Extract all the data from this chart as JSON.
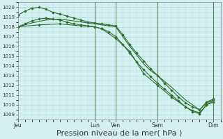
{
  "background_color": "#d4f0f0",
  "grid_color": "#b0d8d8",
  "line_color": "#2d6e2d",
  "ylim": [
    1008.5,
    1020.5
  ],
  "yticks": [
    1009,
    1010,
    1011,
    1012,
    1013,
    1014,
    1015,
    1016,
    1017,
    1018,
    1019,
    1020
  ],
  "xlabel": "Pression niveau de la mer( hPa )",
  "xlabel_fontsize": 8,
  "day_labels": [
    "Jeu",
    "Lun",
    "Ven",
    "Sam",
    "Dim"
  ],
  "day_positions": [
    0,
    11,
    14,
    20,
    28
  ],
  "xlim": [
    0,
    29
  ],
  "vlines": [
    11,
    14,
    20,
    28
  ],
  "series": [
    {
      "x": [
        0,
        1,
        2,
        3,
        4,
        5,
        6,
        7,
        8,
        9,
        10,
        11,
        12,
        13,
        14,
        15,
        16,
        17,
        18,
        19,
        20,
        21,
        22,
        23,
        24,
        25,
        26,
        27,
        28
      ],
      "y": [
        1019.2,
        1019.6,
        1019.9,
        1020.0,
        1019.8,
        1019.5,
        1019.3,
        1019.1,
        1018.9,
        1018.7,
        1018.5,
        1018.4,
        1018.3,
        1018.2,
        1018.1,
        1017.2,
        1016.2,
        1015.3,
        1014.5,
        1013.7,
        1013.0,
        1012.2,
        1011.5,
        1010.8,
        1010.2,
        1009.8,
        1009.5,
        1010.3,
        1010.6
      ],
      "marker": true
    },
    {
      "x": [
        0,
        2,
        4,
        6,
        8,
        10,
        11,
        12,
        13,
        14,
        16,
        18,
        19,
        20,
        22,
        24,
        26,
        27,
        28
      ],
      "y": [
        1018.0,
        1018.4,
        1018.7,
        1018.8,
        1018.6,
        1018.4,
        1018.3,
        1018.2,
        1018.1,
        1018.0,
        1016.0,
        1014.2,
        1013.5,
        1013.0,
        1011.8,
        1010.5,
        1009.5,
        1010.2,
        1010.5
      ],
      "marker": false
    },
    {
      "x": [
        0,
        1,
        2,
        3,
        4,
        5,
        6,
        7,
        8,
        9,
        10,
        11,
        12,
        13,
        14,
        15,
        16,
        17,
        18,
        19,
        20,
        21,
        22,
        23,
        24,
        25,
        26,
        27,
        28
      ],
      "y": [
        1018.0,
        1018.3,
        1018.6,
        1018.8,
        1018.9,
        1018.8,
        1018.7,
        1018.5,
        1018.3,
        1018.2,
        1018.1,
        1018.0,
        1017.8,
        1017.5,
        1017.0,
        1016.2,
        1015.3,
        1014.4,
        1013.6,
        1012.9,
        1012.2,
        1011.6,
        1011.0,
        1010.4,
        1009.8,
        1009.4,
        1009.2,
        1010.0,
        1010.3
      ],
      "marker": true
    },
    {
      "x": [
        0,
        3,
        6,
        9,
        11,
        12,
        14,
        16,
        18,
        20,
        22,
        24,
        25,
        26,
        27,
        28
      ],
      "y": [
        1018.0,
        1018.2,
        1018.3,
        1018.1,
        1018.0,
        1017.8,
        1016.8,
        1015.5,
        1013.2,
        1012.0,
        1010.8,
        1009.8,
        1009.3,
        1009.1,
        1010.0,
        1010.5
      ],
      "marker": true
    }
  ]
}
